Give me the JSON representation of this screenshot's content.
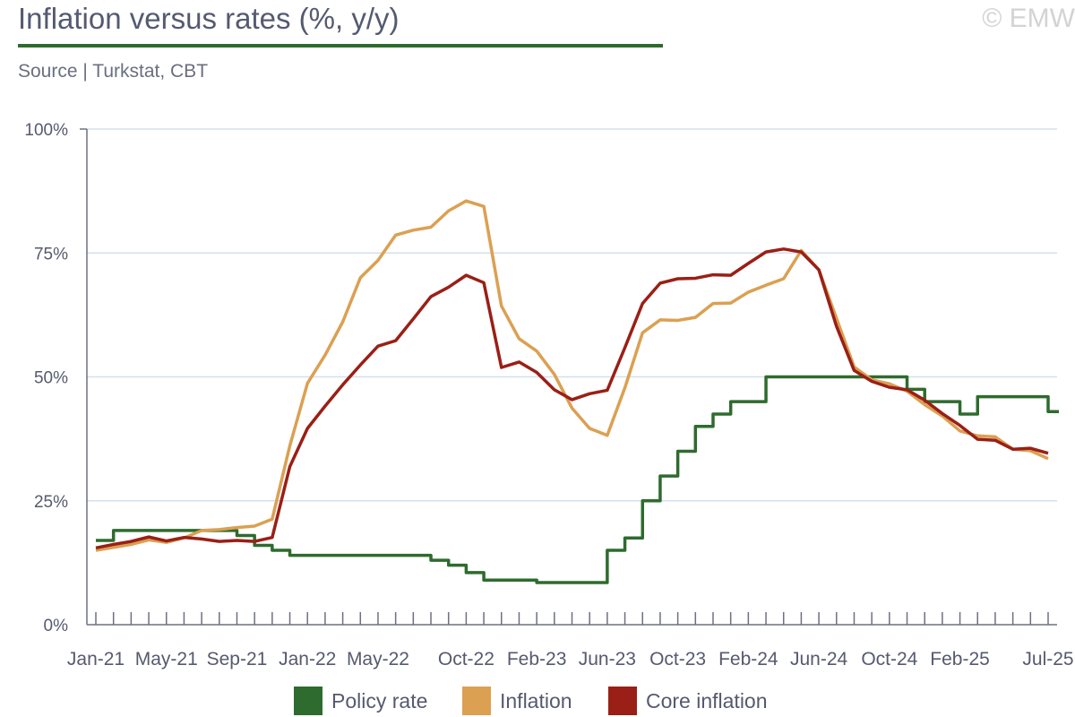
{
  "header": {
    "title": "Inflation versus rates (%, y/y)",
    "copyright": "© EMW",
    "source": "Source | Turkstat, CBT"
  },
  "colors": {
    "policy_rate": "#2e6b2e",
    "inflation": "#dba052",
    "core_inflation": "#9a1f16",
    "grid": "#d3e0ec",
    "axis": "#6d7080",
    "title_rule": "#2e6b2e"
  },
  "chart_data": {
    "type": "line",
    "title": "Inflation versus rates (%, y/y)",
    "ylim": [
      0,
      100
    ],
    "y_ticks": [
      "0%",
      "25%",
      "50%",
      "75%",
      "100%"
    ],
    "grid": true,
    "legend_position": "bottom",
    "x": [
      "Jan-21",
      "Feb-21",
      "Mar-21",
      "Apr-21",
      "May-21",
      "Jun-21",
      "Jul-21",
      "Aug-21",
      "Sep-21",
      "Oct-21",
      "Nov-21",
      "Dec-21",
      "Jan-22",
      "Feb-22",
      "Mar-22",
      "Apr-22",
      "May-22",
      "Jun-22",
      "Jul-22",
      "Aug-22",
      "Sep-22",
      "Oct-22",
      "Nov-22",
      "Dec-22",
      "Jan-23",
      "Feb-23",
      "Mar-23",
      "Apr-23",
      "May-23",
      "Jun-23",
      "Jul-23",
      "Aug-23",
      "Sep-23",
      "Oct-23",
      "Nov-23",
      "Dec-23",
      "Jan-24",
      "Feb-24",
      "Mar-24",
      "Apr-24",
      "May-24",
      "Jun-24",
      "Jul-24",
      "Aug-24",
      "Sep-24",
      "Oct-24",
      "Nov-24",
      "Dec-24",
      "Jan-25",
      "Feb-25",
      "Mar-25",
      "Apr-25",
      "May-25",
      "Jun-25",
      "Jul-25"
    ],
    "x_tick_labels": [
      "Jan-21",
      "May-21",
      "Sep-21",
      "Jan-22",
      "May-22",
      "Oct-22",
      "Feb-23",
      "Jun-23",
      "Oct-23",
      "Feb-24",
      "Jun-24",
      "Oct-24",
      "Feb-25",
      "Jul-25"
    ],
    "series": [
      {
        "name": "Policy rate",
        "style": "step",
        "values": [
          17,
          19,
          19,
          19,
          19,
          19,
          19,
          19,
          18,
          16,
          15,
          14,
          14,
          14,
          14,
          14,
          14,
          14,
          14,
          13,
          12,
          10.5,
          9,
          9,
          9,
          8.5,
          8.5,
          8.5,
          8.5,
          15,
          17.5,
          25,
          30,
          35,
          40,
          42.5,
          45,
          45,
          50,
          50,
          50,
          50,
          50,
          50,
          50,
          50,
          47.5,
          45,
          45,
          42.5,
          46,
          46,
          46,
          46,
          43
        ]
      },
      {
        "name": "Inflation",
        "style": "line",
        "values": [
          15,
          15.6,
          16.2,
          17.1,
          16.6,
          17.5,
          19,
          19.2,
          19.6,
          19.9,
          21.3,
          36.1,
          48.7,
          54.4,
          61.1,
          70,
          73.5,
          78.6,
          79.6,
          80.2,
          83.5,
          85.5,
          84.4,
          64.3,
          57.7,
          55.2,
          50.5,
          43.7,
          39.6,
          38.2,
          47.8,
          58.9,
          61.5,
          61.4,
          62,
          64.8,
          64.9,
          67.1,
          68.5,
          69.8,
          75.5,
          71.6,
          61.8,
          52,
          49.4,
          48.6,
          47.1,
          44.4,
          42.1,
          39.1,
          38.1,
          37.9,
          35.4,
          35.1,
          33.5
        ]
      },
      {
        "name": "Core inflation",
        "style": "line",
        "values": [
          15.5,
          16.2,
          16.8,
          17.7,
          16.9,
          17.6,
          17.3,
          16.8,
          17,
          16.8,
          17.6,
          31.9,
          39.6,
          44.1,
          48.4,
          52.4,
          56.2,
          57.3,
          61.7,
          66.2,
          68.1,
          70.5,
          69,
          51.9,
          53,
          50.9,
          47.4,
          45.4,
          46.6,
          47.3,
          55.9,
          64.8,
          68.9,
          69.8,
          69.9,
          70.6,
          70.5,
          72.9,
          75.2,
          75.8,
          75.2,
          71.6,
          60.2,
          51.3,
          49.1,
          47.9,
          47.4,
          45.3,
          42.6,
          40.2,
          37.4,
          37.2,
          35.4,
          35.6,
          34.6
        ]
      }
    ],
    "legend": [
      "Policy rate",
      "Inflation",
      "Core inflation"
    ]
  }
}
